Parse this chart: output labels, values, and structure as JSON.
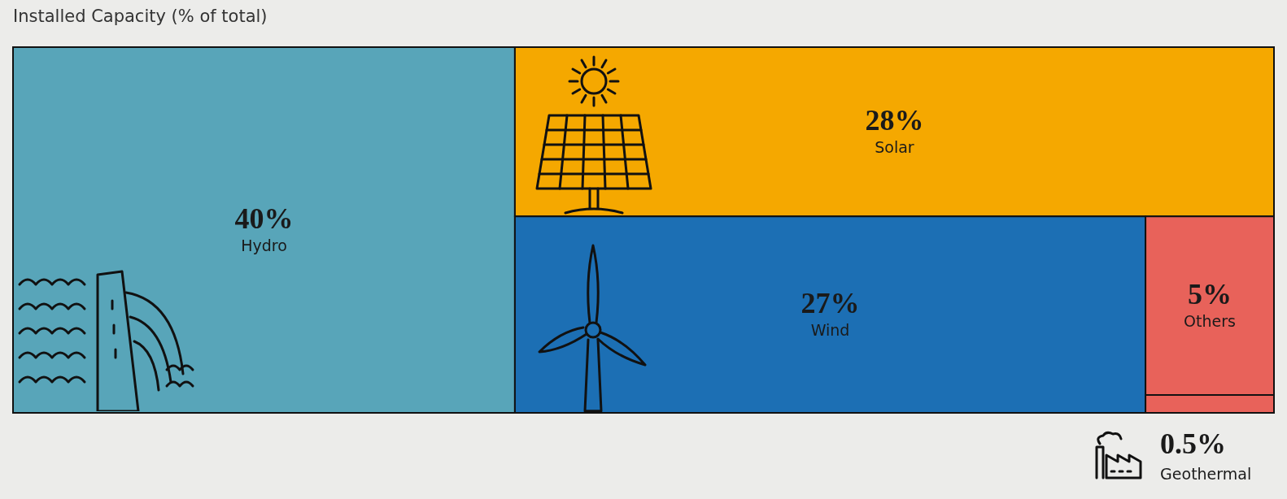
{
  "chart_data": {
    "type": "other",
    "title": "Installed Capacity (% of total)",
    "categories": [
      "Hydro",
      "Solar",
      "Wind",
      "Others",
      "Geothermal"
    ],
    "values": [
      40,
      28,
      27,
      5,
      0.5
    ],
    "value_labels": [
      "40%",
      "28%",
      "27%",
      "5%",
      "0.5%"
    ],
    "colors": [
      "#58a5b9",
      "#f5a800",
      "#1c6fb4",
      "#e8625a",
      "#e8625a"
    ]
  }
}
